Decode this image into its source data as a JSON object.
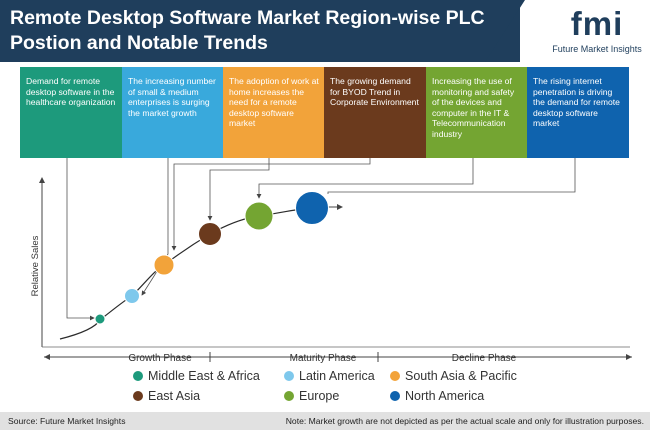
{
  "title": "Remote Desktop Software Market Region-wise PLC Postion and Notable Trends",
  "logo": {
    "text": "fmi",
    "subtitle": "Future Market Insights"
  },
  "trend_boxes": [
    {
      "text": "Demand for remote desktop software in the healthcare organization",
      "color": "#1d9a7c"
    },
    {
      "text": "The increasing number of small & medium enterprises is surging the market growth",
      "color": "#39a9dc"
    },
    {
      "text": "The adoption of work at home increases the need for a remote desktop software market",
      "color": "#f2a33a"
    },
    {
      "text": "The growing demand for BYOD Trend in Corporate Environment",
      "color": "#6b3a1d"
    },
    {
      "text": "Increasing the use of monitoring and safety of the devices and computer in the IT & Telecommunication industry",
      "color": "#74a532"
    },
    {
      "text": "The rising internet penetration is driving the demand for remote desktop software market",
      "color": "#0f63ae"
    }
  ],
  "chart_data": {
    "type": "scatter",
    "title": "",
    "ylabel": "Relative Sales",
    "xlabel": "",
    "phases": [
      "Growth Phase",
      "Maturity Phase",
      "Decline Phase"
    ],
    "points": [
      {
        "name": "Middle East & Africa",
        "color": "#1d9a7c",
        "x": 1,
        "y": 1,
        "size": 1
      },
      {
        "name": "Latin America",
        "color": "#7ec8ec",
        "x": 2,
        "y": 2,
        "size": 2
      },
      {
        "name": "South Asia & Pacific",
        "color": "#f2a33a",
        "x": 3,
        "y": 3,
        "size": 3
      },
      {
        "name": "East Asia",
        "color": "#6b3a1d",
        "x": 4,
        "y": 4,
        "size": 4
      },
      {
        "name": "Europe",
        "color": "#74a532",
        "x": 5,
        "y": 5,
        "size": 5
      },
      {
        "name": "North America",
        "color": "#0f63ae",
        "x": 6,
        "y": 6,
        "size": 6
      }
    ]
  },
  "legend": [
    {
      "label": "Middle East & Africa",
      "color": "#1d9a7c"
    },
    {
      "label": "Latin America",
      "color": "#7ec8ec"
    },
    {
      "label": "South Asia & Pacific",
      "color": "#f2a33a"
    },
    {
      "label": "East Asia",
      "color": "#6b3a1d"
    },
    {
      "label": "Europe",
      "color": "#74a532"
    },
    {
      "label": "North America",
      "color": "#0f63ae"
    }
  ],
  "footer": {
    "source": "Source: Future Market Insights",
    "note": "Note: Market growth are not depicted as per the actual scale and only for illustration purposes."
  }
}
